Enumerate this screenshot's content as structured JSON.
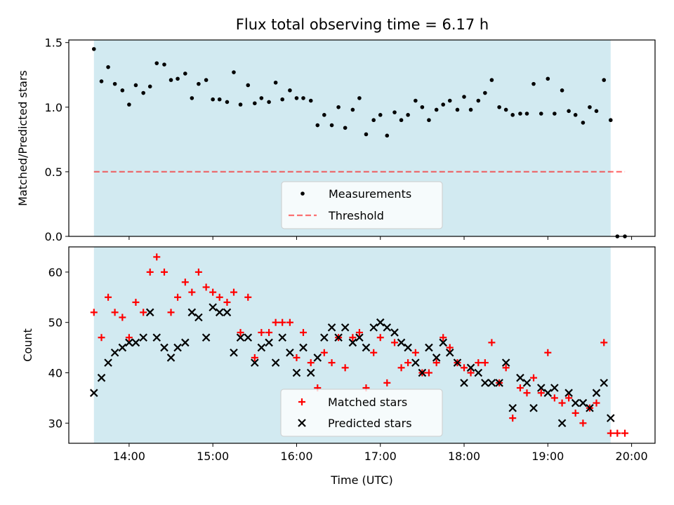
{
  "title": "Flux total observing time = 6.17 h",
  "colors": {
    "observing_span": "#add8e6",
    "measurements": "#000000",
    "threshold": "#ff0000",
    "matched": "#ff0000",
    "predicted": "#000000"
  },
  "x_ticks": [
    "14:00",
    "15:00",
    "16:00",
    "17:00",
    "18:00",
    "19:00",
    "20:00"
  ],
  "chart_data": [
    {
      "type": "scatter",
      "ylabel": "Matched/Predicted stars",
      "xlabel": "",
      "xlim": [
        13.28,
        20.28
      ],
      "ylim": [
        0,
        1.52
      ],
      "yticks": [
        "0.0",
        "0.5",
        "1.0",
        "1.5"
      ],
      "shaded_span": [
        13.58,
        19.75
      ],
      "legend_position": "lower-center",
      "series": [
        {
          "name": "Measurements",
          "marker": "dot",
          "x": [
            13.58,
            13.67,
            13.75,
            13.83,
            13.92,
            14.0,
            14.08,
            14.17,
            14.25,
            14.33,
            14.42,
            14.5,
            14.58,
            14.67,
            14.75,
            14.83,
            14.92,
            15.0,
            15.08,
            15.17,
            15.25,
            15.33,
            15.42,
            15.5,
            15.58,
            15.67,
            15.75,
            15.83,
            15.92,
            16.0,
            16.08,
            16.17,
            16.25,
            16.33,
            16.42,
            16.5,
            16.58,
            16.67,
            16.75,
            16.83,
            16.92,
            17.0,
            17.08,
            17.17,
            17.25,
            17.33,
            17.42,
            17.5,
            17.58,
            17.67,
            17.75,
            17.83,
            17.92,
            18.0,
            18.08,
            18.17,
            18.25,
            18.33,
            18.42,
            18.5,
            18.58,
            18.67,
            18.75,
            18.83,
            18.92,
            19.0,
            19.08,
            19.17,
            19.25,
            19.33,
            19.42,
            19.5,
            19.58,
            19.67,
            19.75,
            19.83,
            19.92
          ],
          "y": [
            1.45,
            1.2,
            1.31,
            1.18,
            1.13,
            1.02,
            1.17,
            1.11,
            1.16,
            1.34,
            1.33,
            1.21,
            1.22,
            1.26,
            1.07,
            1.18,
            1.21,
            1.06,
            1.06,
            1.04,
            1.27,
            1.02,
            1.17,
            1.03,
            1.07,
            1.04,
            1.19,
            1.06,
            1.13,
            1.07,
            1.07,
            1.05,
            0.86,
            0.94,
            0.86,
            1.0,
            0.84,
            0.98,
            1.07,
            0.79,
            0.9,
            0.94,
            0.78,
            0.96,
            0.9,
            0.94,
            1.05,
            1.0,
            0.9,
            0.98,
            1.02,
            1.05,
            0.98,
            1.08,
            0.98,
            1.05,
            1.11,
            1.21,
            1.0,
            0.98,
            0.94,
            0.95,
            0.95,
            1.18,
            0.95,
            1.22,
            0.95,
            1.13,
            0.97,
            0.94,
            0.88,
            1.0,
            0.97,
            1.21,
            0.9,
            0.0,
            0.0
          ]
        },
        {
          "name": "Threshold",
          "marker": "dashed-line",
          "x": [
            13.58,
            19.92
          ],
          "y": [
            0.5,
            0.5
          ]
        }
      ]
    },
    {
      "type": "scatter",
      "ylabel": "Count",
      "xlabel": "Time (UTC)",
      "xlim": [
        13.28,
        20.28
      ],
      "ylim": [
        26,
        65
      ],
      "yticks": [
        "30",
        "40",
        "50",
        "60"
      ],
      "shaded_span": [
        13.58,
        19.75
      ],
      "legend_position": "lower-center",
      "series": [
        {
          "name": "Matched stars",
          "marker": "plus",
          "x": [
            13.58,
            13.67,
            13.75,
            13.83,
            13.92,
            14.0,
            14.08,
            14.17,
            14.25,
            14.33,
            14.42,
            14.5,
            14.58,
            14.67,
            14.75,
            14.83,
            14.92,
            15.0,
            15.08,
            15.17,
            15.25,
            15.33,
            15.42,
            15.5,
            15.58,
            15.67,
            15.75,
            15.83,
            15.92,
            16.0,
            16.08,
            16.17,
            16.25,
            16.33,
            16.42,
            16.5,
            16.58,
            16.67,
            16.75,
            16.83,
            16.92,
            17.0,
            17.08,
            17.17,
            17.25,
            17.33,
            17.42,
            17.5,
            17.58,
            17.67,
            17.75,
            17.83,
            17.92,
            18.0,
            18.08,
            18.17,
            18.25,
            18.33,
            18.42,
            18.5,
            18.58,
            18.67,
            18.75,
            18.83,
            18.92,
            19.0,
            19.08,
            19.17,
            19.25,
            19.33,
            19.42,
            19.5,
            19.58,
            19.67,
            19.75,
            19.83,
            19.92
          ],
          "y": [
            52,
            47,
            55,
            52,
            51,
            47,
            54,
            52,
            60,
            63,
            60,
            52,
            55,
            58,
            56,
            60,
            57,
            56,
            55,
            54,
            56,
            48,
            55,
            43,
            48,
            48,
            50,
            50,
            50,
            43,
            48,
            42,
            37,
            44,
            42,
            47,
            41,
            47,
            48,
            37,
            44,
            47,
            38,
            46,
            41,
            42,
            44,
            40,
            40,
            42,
            47,
            45,
            42,
            41,
            40,
            42,
            42,
            46,
            38,
            41,
            31,
            37,
            36,
            39,
            36,
            44,
            35,
            34,
            35,
            32,
            30,
            33,
            34,
            46,
            28,
            28,
            28
          ],
          "color": "#ff0000"
        },
        {
          "name": "Predicted stars",
          "marker": "x",
          "x": [
            13.58,
            13.67,
            13.75,
            13.83,
            13.92,
            14.0,
            14.08,
            14.17,
            14.25,
            14.33,
            14.42,
            14.5,
            14.58,
            14.67,
            14.75,
            14.83,
            14.92,
            15.0,
            15.08,
            15.17,
            15.25,
            15.33,
            15.42,
            15.5,
            15.58,
            15.67,
            15.75,
            15.83,
            15.92,
            16.0,
            16.08,
            16.17,
            16.25,
            16.33,
            16.42,
            16.5,
            16.58,
            16.67,
            16.75,
            16.83,
            16.92,
            17.0,
            17.08,
            17.17,
            17.25,
            17.33,
            17.42,
            17.5,
            17.58,
            17.67,
            17.75,
            17.83,
            17.92,
            18.0,
            18.08,
            18.17,
            18.25,
            18.33,
            18.42,
            18.5,
            18.58,
            18.67,
            18.75,
            18.83,
            18.92,
            19.0,
            19.08,
            19.17,
            19.25,
            19.33,
            19.42,
            19.5,
            19.58,
            19.67,
            19.75
          ],
          "y": [
            36,
            39,
            42,
            44,
            45,
            46,
            46,
            47,
            52,
            47,
            45,
            43,
            45,
            46,
            52,
            51,
            47,
            53,
            52,
            52,
            44,
            47,
            47,
            42,
            45,
            46,
            42,
            47,
            44,
            40,
            45,
            40,
            43,
            47,
            49,
            47,
            49,
            46,
            47,
            45,
            49,
            50,
            49,
            48,
            46,
            45,
            42,
            40,
            45,
            43,
            46,
            44,
            42,
            38,
            41,
            40,
            38,
            38,
            38,
            42,
            33,
            39,
            38,
            33,
            37,
            36,
            37,
            30,
            36,
            34,
            34,
            33,
            36,
            38,
            31
          ],
          "color": "#000000"
        }
      ]
    }
  ]
}
